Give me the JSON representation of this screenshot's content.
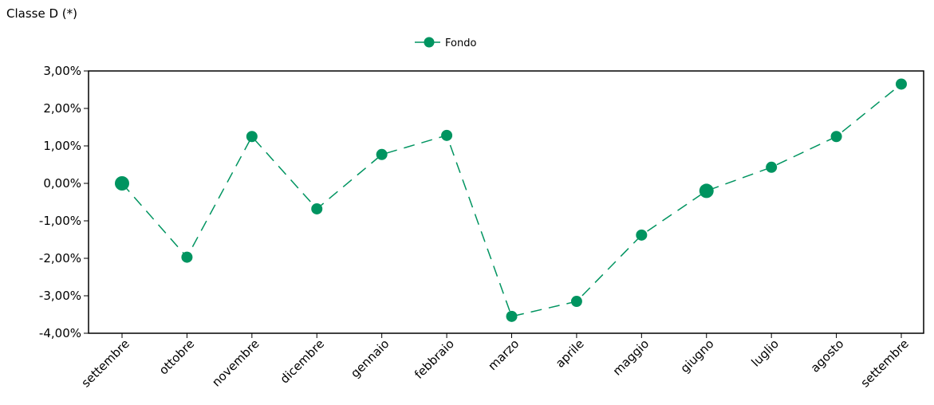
{
  "chart_data": {
    "type": "line",
    "title": "Classe D (*)",
    "xlabel": "",
    "ylabel": "",
    "categories": [
      "settembre",
      "ottobre",
      "novembre",
      "dicembre",
      "gennaio",
      "febbraio",
      "marzo",
      "aprile",
      "maggio",
      "giugno",
      "luglio",
      "agosto",
      "settembre"
    ],
    "series": [
      {
        "name": "Fondo",
        "color": "#009460",
        "line_style": "dashed",
        "values": [
          0.0,
          -1.97,
          1.25,
          -0.68,
          0.77,
          1.28,
          -3.55,
          -3.15,
          -1.38,
          -0.2,
          0.43,
          1.25,
          2.65
        ]
      }
    ],
    "ylim": [
      -4,
      3
    ],
    "yticks": [
      {
        "value": 3,
        "label": "3,00%"
      },
      {
        "value": 2,
        "label": "2,00%"
      },
      {
        "value": 1,
        "label": "1,00%"
      },
      {
        "value": 0,
        "label": "0,00%"
      },
      {
        "value": -1,
        "label": "-1,00%"
      },
      {
        "value": -2,
        "label": "-2,00%"
      },
      {
        "value": -3,
        "label": "-3,00%"
      },
      {
        "value": -4,
        "label": "-4,00%"
      }
    ],
    "grid": false,
    "legend": "top-center"
  }
}
